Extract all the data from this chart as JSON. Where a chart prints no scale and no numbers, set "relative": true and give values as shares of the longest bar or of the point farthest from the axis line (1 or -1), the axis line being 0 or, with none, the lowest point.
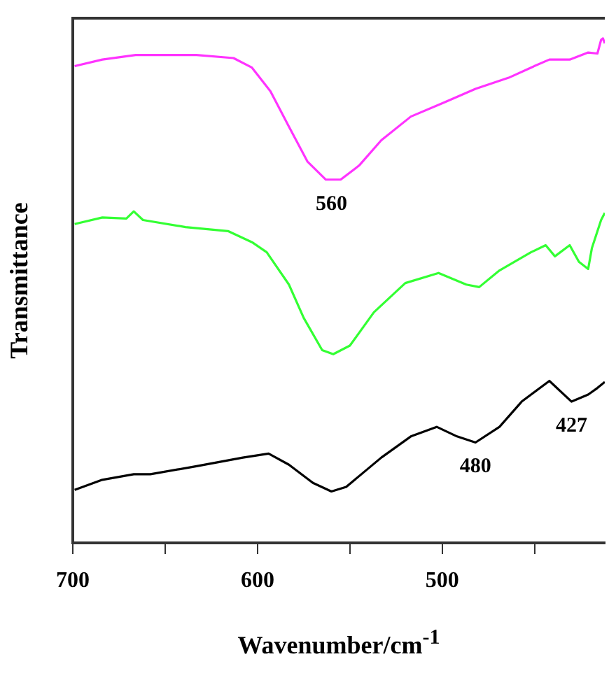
{
  "chart_data": {
    "type": "line",
    "relative": true,
    "ylabel": "Transmittance",
    "xlabel": "Wavenumber/cm$^{-1}$",
    "xlim": [
      700,
      412
    ],
    "xticks": [
      700,
      {
        "value": 650,
        "label": null
      },
      600,
      {
        "value": 550,
        "label": null
      },
      500,
      {
        "value": 450,
        "label": null
      }
    ],
    "grid": false,
    "legend": false,
    "marker": "none",
    "line_style": "solid",
    "tick_labels": "x",
    "series": [
      {
        "color": "#ff33ff",
        "x": [
          699,
          684,
          666,
          633,
          613,
          603,
          593,
          583,
          573,
          563,
          555,
          545,
          533,
          517,
          499,
          482,
          464,
          452,
          442,
          431,
          421,
          416,
          414,
          413,
          412
        ],
        "values": [
          0.945,
          0.958,
          0.967,
          0.967,
          0.961,
          0.942,
          0.895,
          0.825,
          0.756,
          0.72,
          0.72,
          0.748,
          0.798,
          0.845,
          0.873,
          0.9,
          0.922,
          0.942,
          0.958,
          0.958,
          0.972,
          0.97,
          0.997,
          1,
          0.99
        ]
      },
      {
        "color": "#33ff33",
        "x": [
          699,
          684,
          671,
          667,
          662,
          639,
          616,
          603,
          595,
          583,
          575,
          565,
          559,
          550,
          537,
          520,
          502,
          487,
          480,
          469,
          461,
          452,
          444,
          439,
          431,
          426,
          421,
          419,
          414,
          412
        ],
        "values": [
          0.632,
          0.645,
          0.643,
          0.657,
          0.64,
          0.626,
          0.618,
          0.596,
          0.576,
          0.512,
          0.446,
          0.382,
          0.374,
          0.391,
          0.457,
          0.515,
          0.535,
          0.512,
          0.507,
          0.54,
          0.557,
          0.576,
          0.59,
          0.568,
          0.59,
          0.557,
          0.543,
          0.584,
          0.64,
          0.654
        ]
      },
      {
        "color": "#000000",
        "x": [
          699,
          684,
          667,
          658,
          633,
          608,
          594,
          583,
          570,
          560,
          552,
          533,
          517,
          503,
          492,
          482,
          469,
          457,
          442,
          430,
          421,
          416,
          412
        ],
        "values": [
          0.105,
          0.125,
          0.136,
          0.136,
          0.152,
          0.169,
          0.177,
          0.155,
          0.119,
          0.102,
          0.111,
          0.169,
          0.211,
          0.23,
          0.211,
          0.199,
          0.23,
          0.28,
          0.321,
          0.28,
          0.294,
          0.307,
          0.319
        ]
      }
    ],
    "annotations": [
      {
        "text": "560",
        "x": 560,
        "y": 0.72
      },
      {
        "text": "480",
        "x": 482,
        "y": 0.199
      },
      {
        "text": "427",
        "x": 430,
        "y": 0.28
      }
    ]
  }
}
